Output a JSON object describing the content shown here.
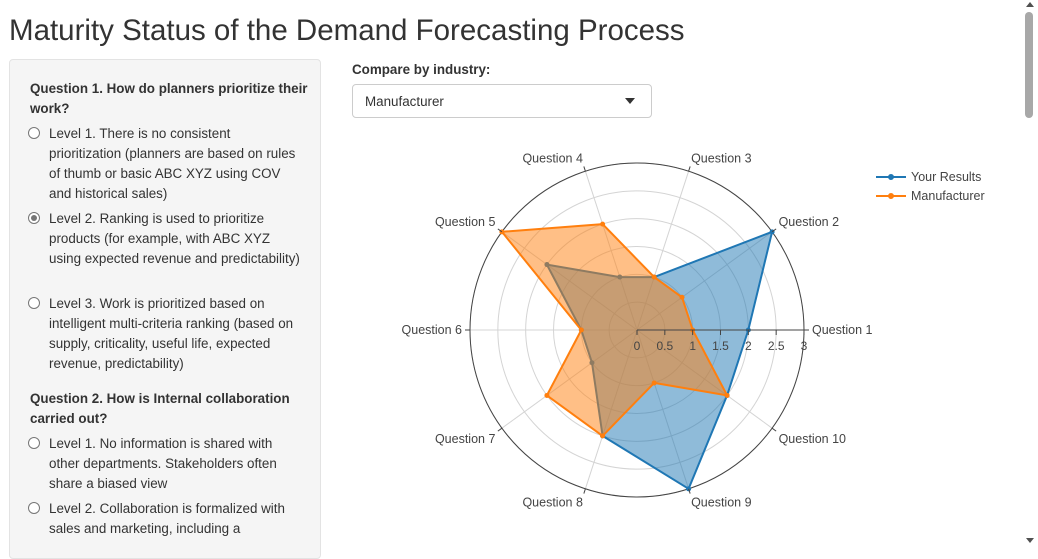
{
  "page": {
    "title": "Maturity Status of the Demand Forecasting Process"
  },
  "sidebar": {
    "questions": [
      {
        "title": "Question 1. How do planners prioritize their work?",
        "options": [
          {
            "label": "Level 1. There is no consistent prioritization (planners are based on rules of thumb or basic ABC XYZ using COV and historical sales)",
            "checked": false
          },
          {
            "label": "Level 2. Ranking is used to prioritize products (for example, with ABC XYZ using expected revenue and predictability)",
            "checked": true
          },
          {
            "label": "Level 3. Work is prioritized based on intelligent multi-criteria ranking (based on supply, criticality, useful life, expected revenue, predictability)",
            "checked": false
          }
        ]
      },
      {
        "title": "Question 2. How is Internal collaboration carried out?",
        "options": [
          {
            "label": "Level 1. No information is shared with other departments. Stakeholders often share a biased view",
            "checked": false
          },
          {
            "label": "Level 2. Collaboration is formalized with sales and marketing, including a",
            "checked": false
          }
        ]
      }
    ]
  },
  "controls": {
    "compare_label": "Compare by industry:",
    "industry_select": {
      "value": "Manufacturer"
    }
  },
  "chart_data": {
    "type": "radar",
    "categories": [
      "Question 1",
      "Question 2",
      "Question 3",
      "Question 4",
      "Question 5",
      "Question 6",
      "Question 7",
      "Question 8",
      "Question 9",
      "Question 10"
    ],
    "radial_ticks": [
      "0",
      "0.5",
      "1",
      "1.5",
      "2",
      "2.5",
      "3"
    ],
    "rlim": [
      0,
      3
    ],
    "grid": true,
    "legend_position": "top-right",
    "series": [
      {
        "name": "Your Results",
        "color": "#1f77b4",
        "values": [
          2,
          3,
          1,
          1,
          2,
          1,
          1,
          2,
          3,
          2
        ]
      },
      {
        "name": "Manufacturer",
        "color": "#ff7f0e",
        "values": [
          1,
          1,
          1,
          2,
          3,
          1,
          2,
          2,
          1,
          2
        ]
      }
    ]
  }
}
